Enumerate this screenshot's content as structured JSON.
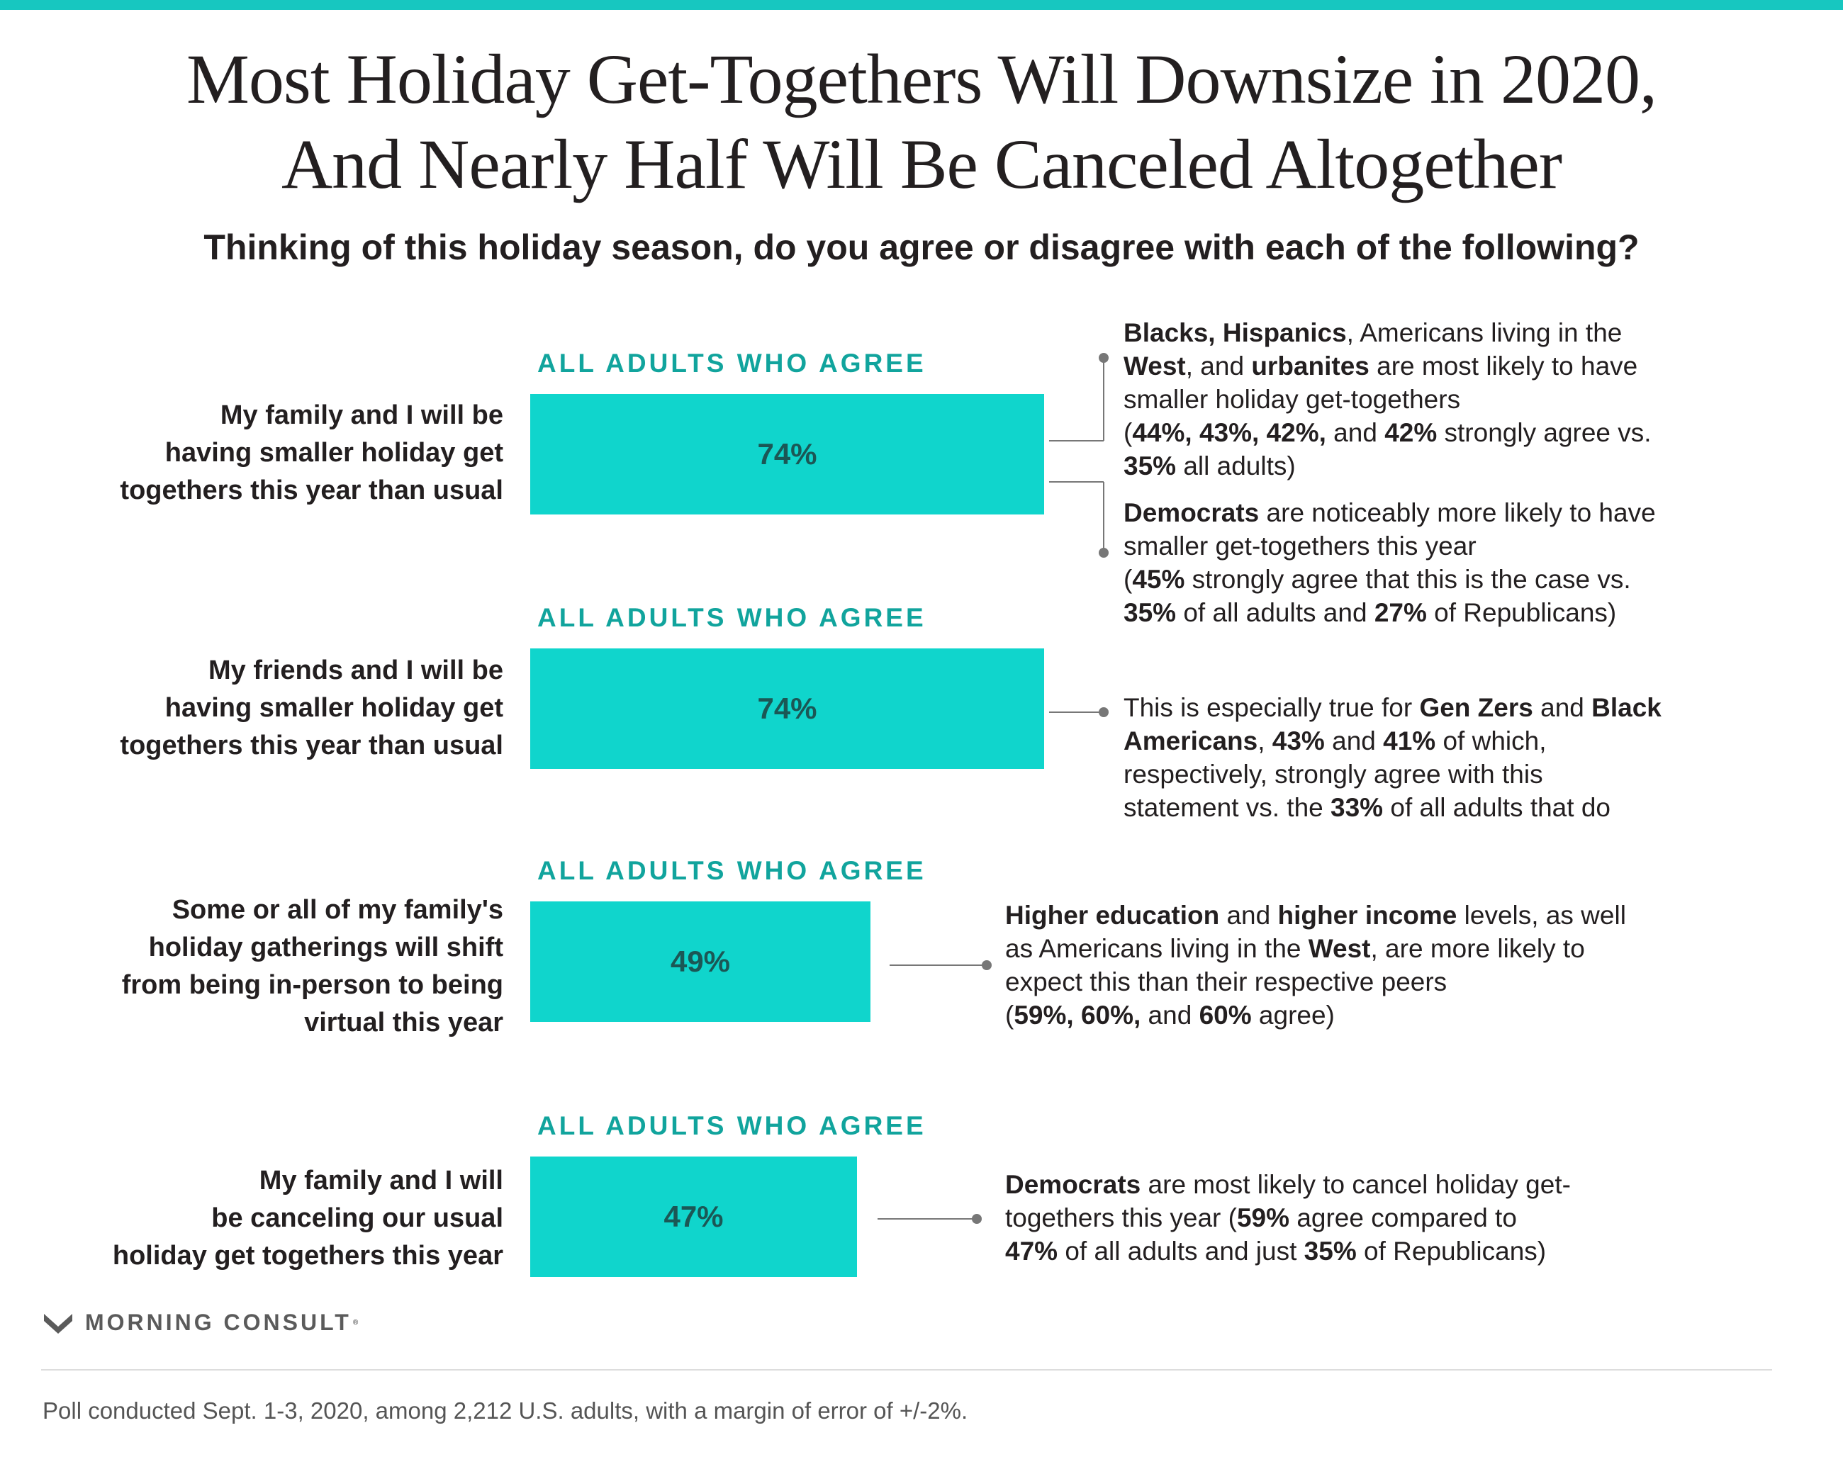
{
  "header": {
    "title_line1": "Most Holiday Get-Togethers Will Downsize in 2020,",
    "title_line2": "And Nearly Half Will Be Canceled Altogether",
    "question": "Thinking of this holiday season, do you agree or disagree with each of the following?"
  },
  "colors": {
    "accent": "#10d5cc",
    "caption": "#11a49d",
    "bar_text": "#1b5755",
    "connector": "#777777"
  },
  "chart_data": {
    "type": "bar",
    "orientation": "horizontal",
    "value_unit": "%",
    "series_caption": "ALL ADULTS WHO AGREE",
    "items": [
      {
        "statement_lines": [
          "My family and I will be",
          "having smaller holiday get",
          "togethers this year than usual"
        ],
        "caption": "ALL ADULTS WHO AGREE",
        "value": 74,
        "value_label": "74%"
      },
      {
        "statement_lines": [
          "My friends and I will be",
          "having smaller holiday get",
          "togethers this year than usual"
        ],
        "caption": "ALL ADULTS WHO AGREE",
        "value": 74,
        "value_label": "74%"
      },
      {
        "statement_lines": [
          "Some or all of my family's",
          "holiday gatherings will shift",
          "from being in-person to being",
          "virtual this year"
        ],
        "caption": "ALL ADULTS WHO AGREE",
        "value": 49,
        "value_label": "49%"
      },
      {
        "statement_lines": [
          "My family and I will",
          "be canceling our usual",
          "holiday get togethers this year"
        ],
        "caption": "ALL ADULTS WHO AGREE",
        "value": 47,
        "value_label": "47%"
      }
    ]
  },
  "annotations": [
    {
      "lines": [
        [
          {
            "t": "Blacks, Hispanics",
            "b": true
          },
          {
            "t": ", Americans living in the",
            "b": false
          }
        ],
        [
          {
            "t": "West",
            "b": true
          },
          {
            "t": ", and ",
            "b": false
          },
          {
            "t": "urbanites",
            "b": true
          },
          {
            "t": " are most likely to have",
            "b": false
          }
        ],
        [
          {
            "t": "smaller holiday get-togethers",
            "b": false
          }
        ],
        [
          {
            "t": "(",
            "b": false
          },
          {
            "t": "44%, 43%, 42%,",
            "b": true
          },
          {
            "t": " and ",
            "b": false
          },
          {
            "t": "42%",
            "b": true
          },
          {
            "t": " strongly agree vs.",
            "b": false
          }
        ],
        [
          {
            "t": "35%",
            "b": true
          },
          {
            "t": " all adults)",
            "b": false
          }
        ]
      ]
    },
    {
      "lines": [
        [
          {
            "t": "Democrats",
            "b": true
          },
          {
            "t": " are noticeably more likely to have",
            "b": false
          }
        ],
        [
          {
            "t": "smaller get-togethers this year",
            "b": false
          }
        ],
        [
          {
            "t": "(",
            "b": false
          },
          {
            "t": "45%",
            "b": true
          },
          {
            "t": " strongly agree that this is the case vs.",
            "b": false
          }
        ],
        [
          {
            "t": "35%",
            "b": true
          },
          {
            "t": " of all adults and ",
            "b": false
          },
          {
            "t": "27%",
            "b": true
          },
          {
            "t": " of Republicans)",
            "b": false
          }
        ]
      ]
    },
    {
      "lines": [
        [
          {
            "t": "This is especially true for ",
            "b": false
          },
          {
            "t": "Gen Zers",
            "b": true
          },
          {
            "t": " and ",
            "b": false
          },
          {
            "t": "Black",
            "b": true
          }
        ],
        [
          {
            "t": "Americans",
            "b": true
          },
          {
            "t": ", ",
            "b": false
          },
          {
            "t": "43%",
            "b": true
          },
          {
            "t": " and ",
            "b": false
          },
          {
            "t": "41%",
            "b": true
          },
          {
            "t": " of which,",
            "b": false
          }
        ],
        [
          {
            "t": "respectively, strongly agree with this",
            "b": false
          }
        ],
        [
          {
            "t": "statement vs. the ",
            "b": false
          },
          {
            "t": "33%",
            "b": true
          },
          {
            "t": " of all adults that do",
            "b": false
          }
        ]
      ]
    },
    {
      "lines": [
        [
          {
            "t": "Higher education",
            "b": true
          },
          {
            "t": " and ",
            "b": false
          },
          {
            "t": "higher income",
            "b": true
          },
          {
            "t": " levels, as well",
            "b": false
          }
        ],
        [
          {
            "t": "as Americans living in the ",
            "b": false
          },
          {
            "t": "West",
            "b": true
          },
          {
            "t": ", are more likely to",
            "b": false
          }
        ],
        [
          {
            "t": "expect this than their respective peers",
            "b": false
          }
        ],
        [
          {
            "t": "(",
            "b": false
          },
          {
            "t": "59%, 60%,",
            "b": true
          },
          {
            "t": " and ",
            "b": false
          },
          {
            "t": "60%",
            "b": true
          },
          {
            "t": " agree)",
            "b": false
          }
        ]
      ]
    },
    {
      "lines": [
        [
          {
            "t": "Democrats",
            "b": true
          },
          {
            "t": " are most likely to cancel holiday get-",
            "b": false
          }
        ],
        [
          {
            "t": "togethers this year (",
            "b": false
          },
          {
            "t": "59%",
            "b": true
          },
          {
            "t": " agree compared to",
            "b": false
          }
        ],
        [
          {
            "t": "47%",
            "b": true
          },
          {
            "t": " of all adults and just ",
            "b": false
          },
          {
            "t": "35%",
            "b": true
          },
          {
            "t": " of Republicans)",
            "b": false
          }
        ]
      ]
    }
  ],
  "brand": {
    "name": "MORNING CONSULT",
    "icon": "morning-consult-logo-icon"
  },
  "footer": {
    "note": "Poll conducted Sept. 1-3, 2020, among 2,212 U.S. adults, with a margin of error of +/-2%."
  }
}
